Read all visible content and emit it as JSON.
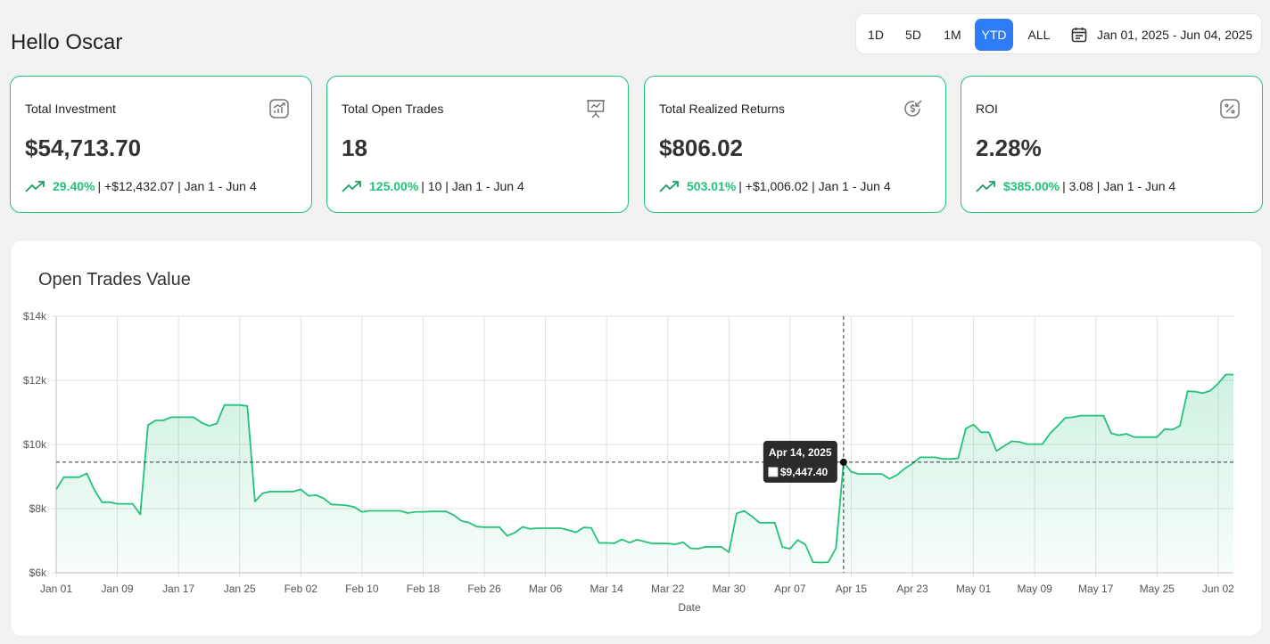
{
  "greeting": "Hello Oscar",
  "range": {
    "buttons": [
      "1D",
      "5D",
      "1M",
      "YTD",
      "ALL"
    ],
    "selected": "YTD",
    "date_range": "Jan 01, 2025 - Jun 04, 2025"
  },
  "cards": [
    {
      "title": "Total Investment",
      "value": "$54,713.70",
      "pct": "29.40%",
      "detail": " | +$12,432.07 | Jan 1 - Jun 4",
      "icon": "chart-growth-icon"
    },
    {
      "title": "Total Open Trades",
      "value": "18",
      "pct": "125.00%",
      "detail": " | 10 | Jan 1 - Jun 4",
      "icon": "presentation-chart-icon"
    },
    {
      "title": "Total Realized Returns",
      "value": "$806.02",
      "pct": "503.01%",
      "detail": " | +$1,006.02 | Jan 1 - Jun 4",
      "icon": "dollar-return-icon"
    },
    {
      "title": "ROI",
      "value": "2.28%",
      "pct": "$385.00%",
      "detail": " | 3.08 | Jan 1 - Jun 4",
      "icon": "percent-icon"
    }
  ],
  "colors": {
    "accent": "#22c27a",
    "primary": "#2f7df6"
  },
  "chart": {
    "title": "Open Trades Value"
  },
  "chart_data": {
    "type": "area",
    "title": "Open Trades Value",
    "xlabel": "Date",
    "ylabel": "",
    "x_ticks": [
      "Jan 01",
      "Jan 09",
      "Jan 17",
      "Jan 25",
      "Feb 02",
      "Feb 10",
      "Feb 18",
      "Feb 26",
      "Mar 06",
      "Mar 14",
      "Mar 22",
      "Mar 30",
      "Apr 07",
      "Apr 15",
      "Apr 23",
      "May 01",
      "May 09",
      "May 17",
      "May 25",
      "Jun 02"
    ],
    "y_ticks": [
      "$6k",
      "$8k",
      "$10k",
      "$12k",
      "$14k"
    ],
    "ylim": [
      6000,
      14000
    ],
    "x_range": [
      "2025-01-01",
      "2025-06-04"
    ],
    "grid": true,
    "series": [
      {
        "points": [
          [
            "2025-01-01",
            8600
          ],
          [
            "2025-01-02",
            8980
          ],
          [
            "2025-01-03",
            8980
          ],
          [
            "2025-01-04",
            8980
          ],
          [
            "2025-01-05",
            9100
          ],
          [
            "2025-01-06",
            8580
          ],
          [
            "2025-01-07",
            8200
          ],
          [
            "2025-01-08",
            8200
          ],
          [
            "2025-01-09",
            8150
          ],
          [
            "2025-01-10",
            8150
          ],
          [
            "2025-01-11",
            8150
          ],
          [
            "2025-01-12",
            7820
          ],
          [
            "2025-01-13",
            10600
          ],
          [
            "2025-01-14",
            10750
          ],
          [
            "2025-01-15",
            10750
          ],
          [
            "2025-01-16",
            10850
          ],
          [
            "2025-01-17",
            10850
          ],
          [
            "2025-01-18",
            10850
          ],
          [
            "2025-01-19",
            10850
          ],
          [
            "2025-01-20",
            10680
          ],
          [
            "2025-01-21",
            10580
          ],
          [
            "2025-01-22",
            10650
          ],
          [
            "2025-01-23",
            11230
          ],
          [
            "2025-01-24",
            11230
          ],
          [
            "2025-01-25",
            11230
          ],
          [
            "2025-01-26",
            11200
          ],
          [
            "2025-01-27",
            8220
          ],
          [
            "2025-01-28",
            8480
          ],
          [
            "2025-01-29",
            8530
          ],
          [
            "2025-01-30",
            8530
          ],
          [
            "2025-01-31",
            8530
          ],
          [
            "2025-02-01",
            8530
          ],
          [
            "2025-02-02",
            8600
          ],
          [
            "2025-02-03",
            8400
          ],
          [
            "2025-02-04",
            8420
          ],
          [
            "2025-02-05",
            8320
          ],
          [
            "2025-02-06",
            8130
          ],
          [
            "2025-02-07",
            8120
          ],
          [
            "2025-02-08",
            8100
          ],
          [
            "2025-02-09",
            8050
          ],
          [
            "2025-02-10",
            7900
          ],
          [
            "2025-02-11",
            7930
          ],
          [
            "2025-02-12",
            7930
          ],
          [
            "2025-02-13",
            7930
          ],
          [
            "2025-02-14",
            7930
          ],
          [
            "2025-02-15",
            7930
          ],
          [
            "2025-02-16",
            7860
          ],
          [
            "2025-02-17",
            7900
          ],
          [
            "2025-02-18",
            7900
          ],
          [
            "2025-02-19",
            7910
          ],
          [
            "2025-02-20",
            7910
          ],
          [
            "2025-02-21",
            7910
          ],
          [
            "2025-02-22",
            7800
          ],
          [
            "2025-02-23",
            7620
          ],
          [
            "2025-02-24",
            7560
          ],
          [
            "2025-02-25",
            7440
          ],
          [
            "2025-02-26",
            7420
          ],
          [
            "2025-02-27",
            7420
          ],
          [
            "2025-02-28",
            7420
          ],
          [
            "2025-03-01",
            7150
          ],
          [
            "2025-03-02",
            7250
          ],
          [
            "2025-03-03",
            7430
          ],
          [
            "2025-03-04",
            7370
          ],
          [
            "2025-03-05",
            7390
          ],
          [
            "2025-03-06",
            7390
          ],
          [
            "2025-03-07",
            7390
          ],
          [
            "2025-03-08",
            7390
          ],
          [
            "2025-03-09",
            7330
          ],
          [
            "2025-03-10",
            7260
          ],
          [
            "2025-03-11",
            7410
          ],
          [
            "2025-03-12",
            7400
          ],
          [
            "2025-03-13",
            6930
          ],
          [
            "2025-03-14",
            6930
          ],
          [
            "2025-03-15",
            6920
          ],
          [
            "2025-03-16",
            7040
          ],
          [
            "2025-03-17",
            6940
          ],
          [
            "2025-03-18",
            7030
          ],
          [
            "2025-03-19",
            6970
          ],
          [
            "2025-03-20",
            6910
          ],
          [
            "2025-03-21",
            6910
          ],
          [
            "2025-03-22",
            6910
          ],
          [
            "2025-03-23",
            6890
          ],
          [
            "2025-03-24",
            6950
          ],
          [
            "2025-03-25",
            6760
          ],
          [
            "2025-03-26",
            6750
          ],
          [
            "2025-03-27",
            6810
          ],
          [
            "2025-03-28",
            6800
          ],
          [
            "2025-03-29",
            6810
          ],
          [
            "2025-03-30",
            6640
          ],
          [
            "2025-03-31",
            7850
          ],
          [
            "2025-04-01",
            7930
          ],
          [
            "2025-04-02",
            7760
          ],
          [
            "2025-04-03",
            7560
          ],
          [
            "2025-04-04",
            7560
          ],
          [
            "2025-04-05",
            7560
          ],
          [
            "2025-04-06",
            6800
          ],
          [
            "2025-04-07",
            6750
          ],
          [
            "2025-04-08",
            7020
          ],
          [
            "2025-04-09",
            6880
          ],
          [
            "2025-04-10",
            6330
          ],
          [
            "2025-04-11",
            6320
          ],
          [
            "2025-04-12",
            6330
          ],
          [
            "2025-04-13",
            6760
          ],
          [
            "2025-04-14",
            9447.4
          ],
          [
            "2025-04-15",
            9150
          ],
          [
            "2025-04-16",
            9080
          ],
          [
            "2025-04-17",
            9080
          ],
          [
            "2025-04-18",
            9080
          ],
          [
            "2025-04-19",
            9080
          ],
          [
            "2025-04-20",
            8930
          ],
          [
            "2025-04-21",
            9050
          ],
          [
            "2025-04-22",
            9250
          ],
          [
            "2025-04-23",
            9400
          ],
          [
            "2025-04-24",
            9600
          ],
          [
            "2025-04-25",
            9600
          ],
          [
            "2025-04-26",
            9600
          ],
          [
            "2025-04-27",
            9550
          ],
          [
            "2025-04-28",
            9550
          ],
          [
            "2025-04-29",
            9570
          ],
          [
            "2025-04-30",
            10500
          ],
          [
            "2025-05-01",
            10620
          ],
          [
            "2025-05-02",
            10380
          ],
          [
            "2025-05-03",
            10380
          ],
          [
            "2025-05-04",
            9800
          ],
          [
            "2025-05-05",
            9950
          ],
          [
            "2025-05-06",
            10100
          ],
          [
            "2025-05-07",
            10080
          ],
          [
            "2025-05-08",
            10010
          ],
          [
            "2025-05-09",
            10010
          ],
          [
            "2025-05-10",
            10010
          ],
          [
            "2025-05-11",
            10340
          ],
          [
            "2025-05-12",
            10580
          ],
          [
            "2025-05-13",
            10830
          ],
          [
            "2025-05-14",
            10850
          ],
          [
            "2025-05-15",
            10900
          ],
          [
            "2025-05-16",
            10900
          ],
          [
            "2025-05-17",
            10900
          ],
          [
            "2025-05-18",
            10900
          ],
          [
            "2025-05-19",
            10350
          ],
          [
            "2025-05-20",
            10290
          ],
          [
            "2025-05-21",
            10330
          ],
          [
            "2025-05-22",
            10230
          ],
          [
            "2025-05-23",
            10230
          ],
          [
            "2025-05-24",
            10230
          ],
          [
            "2025-05-25",
            10230
          ],
          [
            "2025-05-26",
            10480
          ],
          [
            "2025-05-27",
            10460
          ],
          [
            "2025-05-28",
            10580
          ],
          [
            "2025-05-29",
            11660
          ],
          [
            "2025-05-30",
            11650
          ],
          [
            "2025-05-31",
            11600
          ],
          [
            "2025-06-01",
            11680
          ],
          [
            "2025-06-02",
            11900
          ],
          [
            "2025-06-03",
            12180
          ],
          [
            "2025-06-04",
            12180
          ]
        ]
      }
    ],
    "tooltip": {
      "date_label": "Apr 14, 2025",
      "value_label": "$9,447.40",
      "x": "2025-04-14",
      "y": 9447.4
    }
  }
}
